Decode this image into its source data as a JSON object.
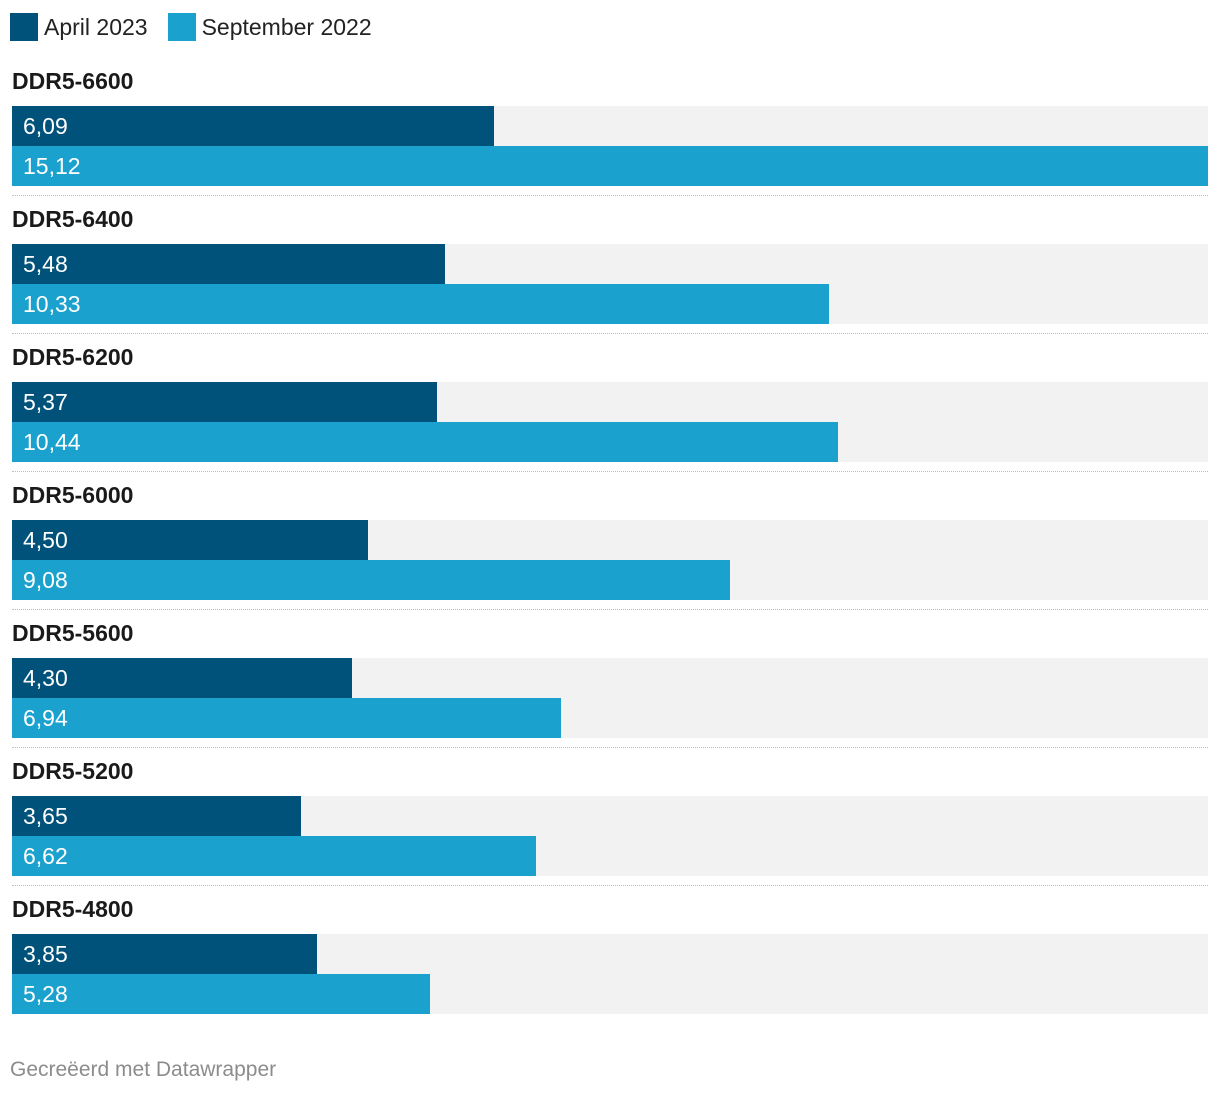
{
  "legend": {
    "items": [
      {
        "label": "April 2023",
        "color": "#00527a"
      },
      {
        "label": "September 2022",
        "color": "#1ba1ce"
      }
    ]
  },
  "chart_data": {
    "type": "bar",
    "orientation": "horizontal",
    "categories": [
      "DDR5-6600",
      "DDR5-6400",
      "DDR5-6200",
      "DDR5-6000",
      "DDR5-5600",
      "DDR5-5200",
      "DDR5-4800"
    ],
    "series": [
      {
        "name": "April 2023",
        "color": "#00527a",
        "values": [
          6.09,
          5.48,
          5.37,
          4.5,
          4.3,
          3.65,
          3.85
        ],
        "labels": [
          "6,09",
          "5,48",
          "5,37",
          "4,50",
          "4,30",
          "3,65",
          "3,85"
        ]
      },
      {
        "name": "September 2022",
        "color": "#1ba1ce",
        "values": [
          15.12,
          10.33,
          10.44,
          9.08,
          6.94,
          6.62,
          5.28
        ],
        "labels": [
          "15,12",
          "10,33",
          "10,44",
          "9,08",
          "6,94",
          "6,62",
          "5,28"
        ]
      }
    ],
    "xlim": [
      0,
      15.12
    ],
    "title": "",
    "xlabel": "",
    "ylabel": "",
    "legend_position": "top-left"
  },
  "footer": {
    "credit": "Gecreëerd met Datawrapper"
  }
}
